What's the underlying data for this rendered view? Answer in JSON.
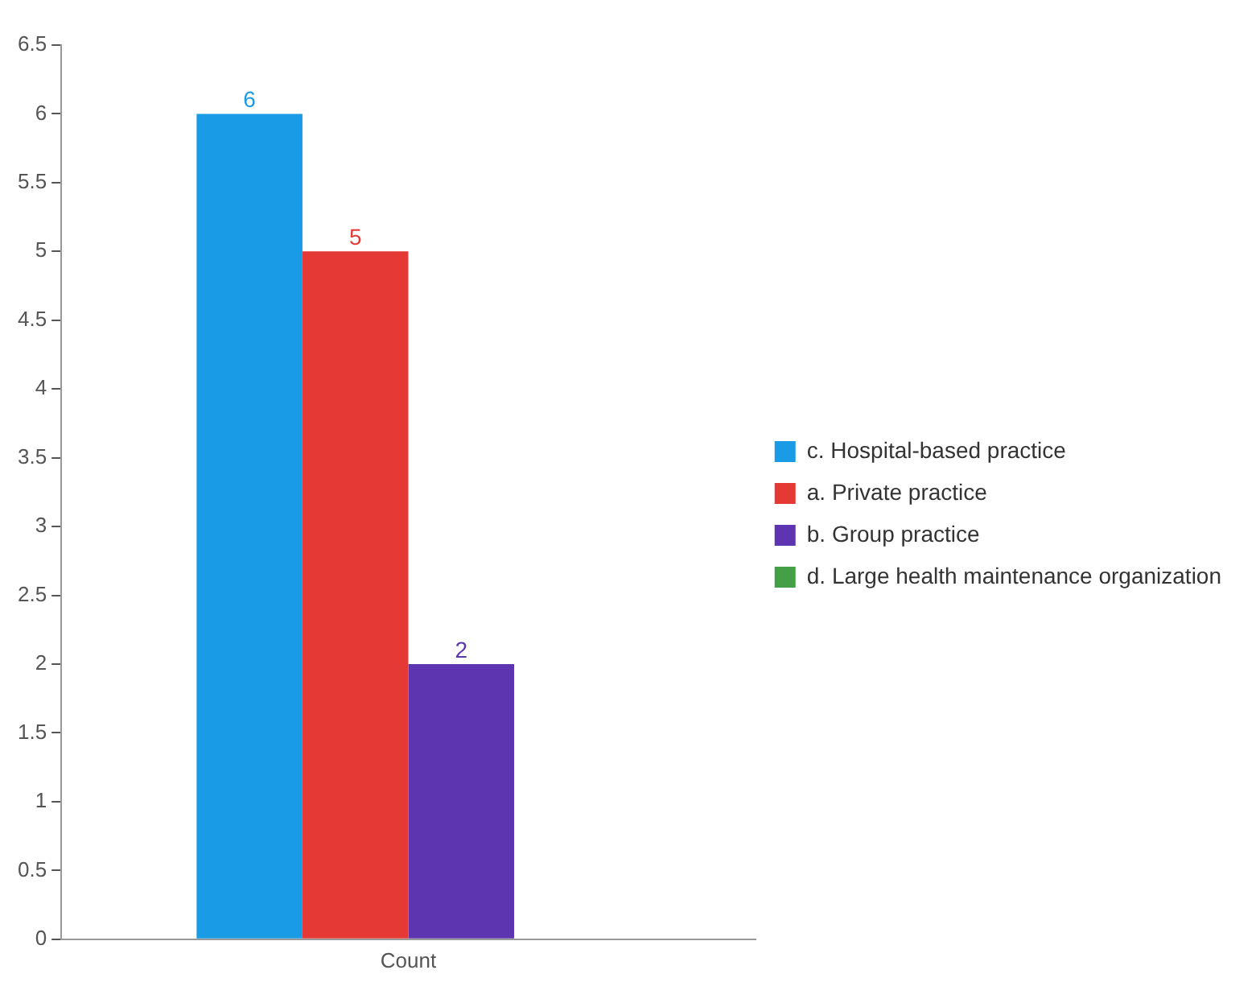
{
  "chart_data": {
    "type": "bar",
    "categories": [
      "Count"
    ],
    "series": [
      {
        "name": "c. Hospital-based practice",
        "color": "#1a9be6",
        "values": [
          6
        ],
        "value_labels": [
          "6"
        ]
      },
      {
        "name": "a. Private practice",
        "color": "#e53935",
        "values": [
          5
        ],
        "value_labels": [
          "5"
        ]
      },
      {
        "name": "b. Group practice",
        "color": "#5e35b1",
        "values": [
          2
        ],
        "value_labels": [
          "2"
        ]
      },
      {
        "name": "d. Large health maintenance organization",
        "color": "#43a047",
        "values": [
          0
        ],
        "value_labels": [
          null
        ]
      }
    ],
    "ylim": [
      0,
      6.5
    ],
    "yticks": [
      0,
      0.5,
      1,
      1.5,
      2,
      2.5,
      3,
      3.5,
      4,
      4.5,
      5,
      5.5,
      6,
      6.5
    ],
    "grid": false,
    "legend": "right"
  }
}
